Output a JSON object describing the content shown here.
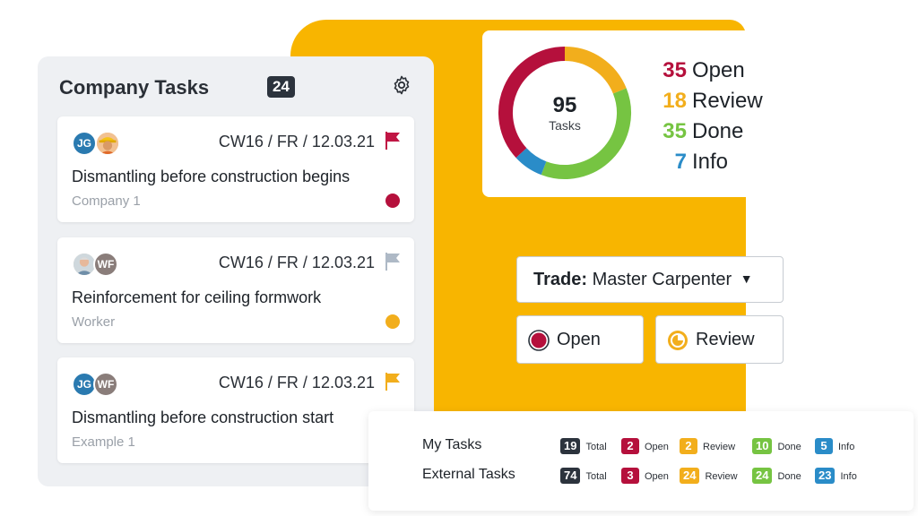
{
  "colors": {
    "open": "#b5103c",
    "review": "#f2ae1c",
    "done": "#76c442",
    "info": "#2a8cc8",
    "dark": "#2c333d",
    "flag_red": "#c01544",
    "flag_grey": "#aeb9c6",
    "flag_yellow": "#f2ae1c"
  },
  "tasks_panel": {
    "title": "Company Tasks",
    "count": "24",
    "settings_icon": "gear-icon",
    "cards": [
      {
        "avatar1": "JG",
        "avatar2": "",
        "date": "CW16 / FR / 12.03.21",
        "title": "Dismantling before construction begins",
        "subtitle": "Company 1",
        "flag": "flag-icon",
        "status": "open"
      },
      {
        "avatar1": "",
        "avatar2": "WF",
        "date": "CW16 / FR / 12.03.21",
        "title": "Reinforcement for ceiling formwork",
        "subtitle": "Worker",
        "flag": "flag-icon",
        "status": "review"
      },
      {
        "avatar1": "JG",
        "avatar2": "WF",
        "date": "CW16 / FR / 12.03.21",
        "title": "Dismantling before construction start",
        "subtitle": "Example 1",
        "flag": "flag-icon",
        "status": "review"
      }
    ]
  },
  "summary_chart": {
    "total": "95",
    "total_label": "Tasks",
    "items": [
      {
        "value": "35",
        "label": "Open"
      },
      {
        "value": "18",
        "label": "Review"
      },
      {
        "value": "35",
        "label": "Done"
      },
      {
        "value": "7",
        "label": "Info"
      }
    ]
  },
  "chart_data": {
    "type": "pie",
    "categories": [
      "Open",
      "Review",
      "Done",
      "Info"
    ],
    "values": [
      35,
      18,
      35,
      7
    ]
  },
  "trade_select": {
    "label": "Trade:",
    "value": "Master Carpenter"
  },
  "filters": [
    {
      "label": "Open"
    },
    {
      "label": "Review"
    }
  ],
  "summary": {
    "rows": [
      {
        "name": "My Tasks",
        "total": "19",
        "open": "2",
        "review": "2",
        "done": "10",
        "info": "5"
      },
      {
        "name": "External Tasks",
        "total": "74",
        "open": "3",
        "review": "24",
        "done": "24",
        "info": "23"
      }
    ],
    "labels": {
      "total": "Total",
      "open": "Open",
      "review": "Review",
      "done": "Done",
      "info": "Info"
    }
  }
}
